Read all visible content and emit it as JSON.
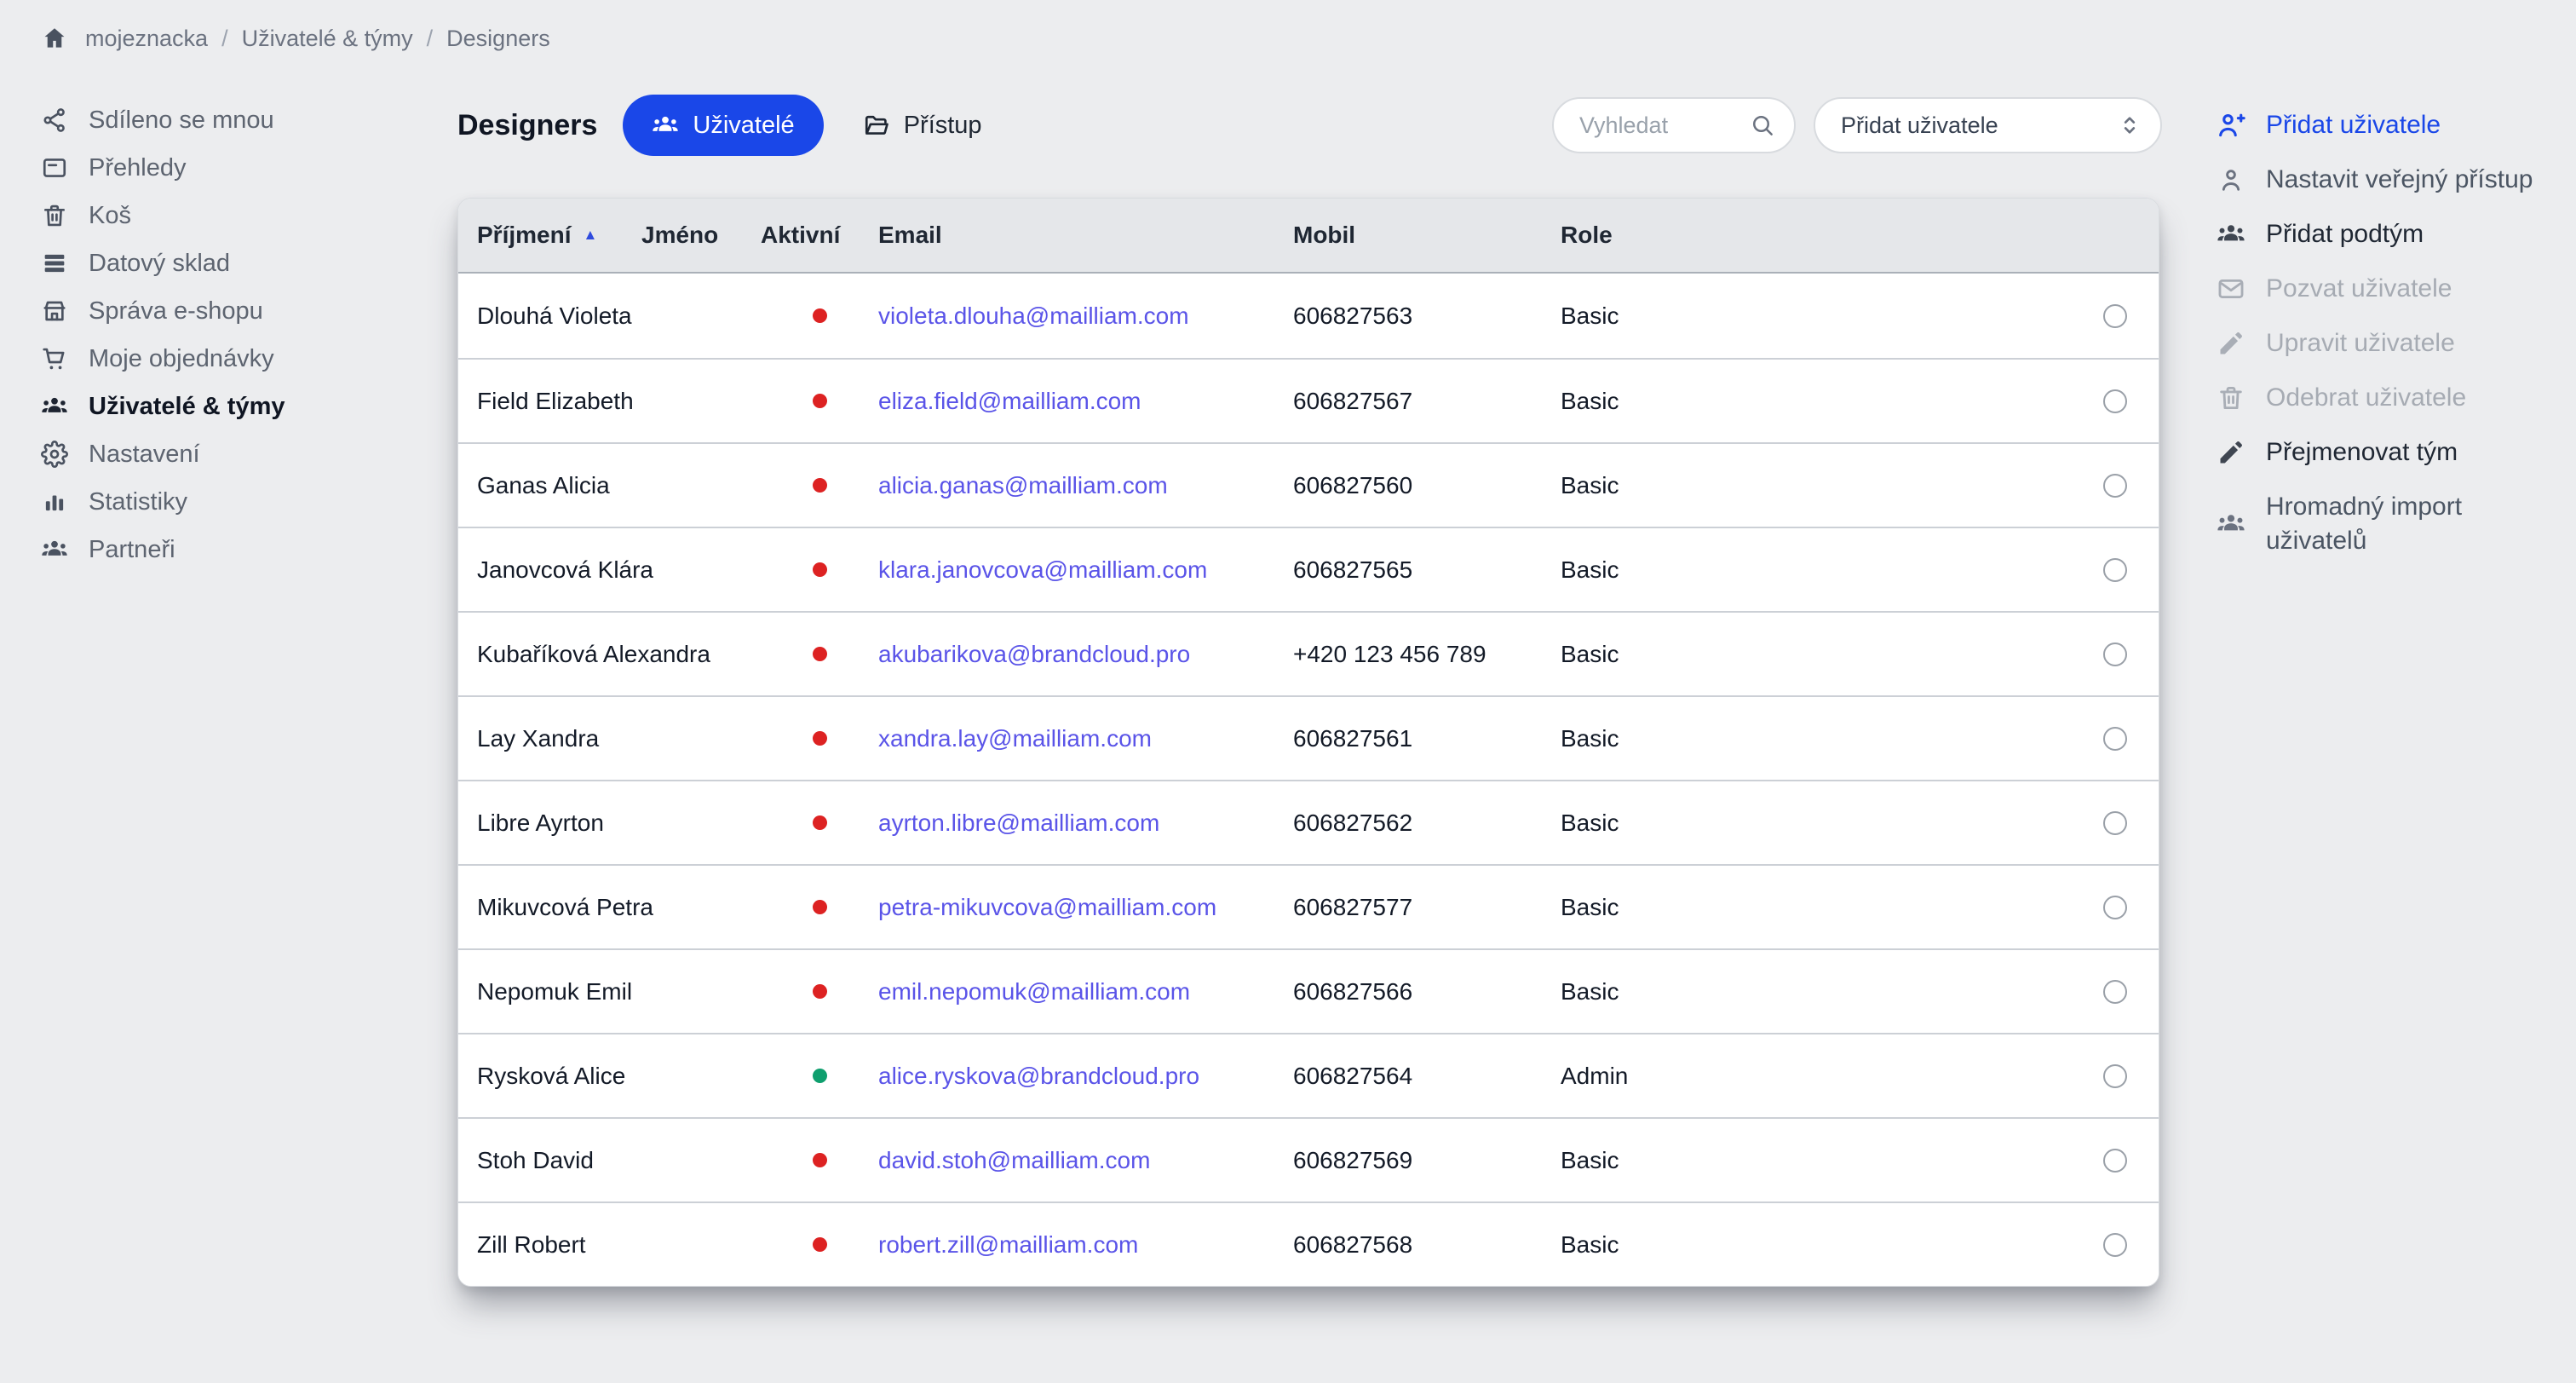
{
  "colors": {
    "accent": "#1a47e8",
    "link": "#5a54e8",
    "status_active": "#0f9f6e",
    "status_inactive": "#dd2222"
  },
  "breadcrumb": {
    "separator": "/",
    "items": [
      "mojeznacka",
      "Uživatelé & týmy",
      "Designers"
    ]
  },
  "sidebar": {
    "items": [
      {
        "icon": "share-icon",
        "label": "Sdíleno se mnou",
        "active": false
      },
      {
        "icon": "overview-icon",
        "label": "Přehledy",
        "active": false
      },
      {
        "icon": "trash-icon",
        "label": "Koš",
        "active": false
      },
      {
        "icon": "data-warehouse-icon",
        "label": "Datový sklad",
        "active": false
      },
      {
        "icon": "store-icon",
        "label": "Správa e-shopu",
        "active": false
      },
      {
        "icon": "cart-icon",
        "label": "Moje objednávky",
        "active": false
      },
      {
        "icon": "users-icon",
        "label": "Uživatelé & týmy",
        "active": true
      },
      {
        "icon": "gear-icon",
        "label": "Nastavení",
        "active": false
      },
      {
        "icon": "stats-icon",
        "label": "Statistiky",
        "active": false
      },
      {
        "icon": "partners-icon",
        "label": "Partneři",
        "active": false
      }
    ]
  },
  "header": {
    "title": "Designers",
    "tabs": [
      {
        "icon": "users-icon",
        "label": "Uživatelé",
        "active": true
      },
      {
        "icon": "folder-icon",
        "label": "Přístup",
        "active": false
      }
    ],
    "search_placeholder": "Vyhledat",
    "add_user_label": "Přidat uživatele"
  },
  "table": {
    "columns": [
      "Příjmení",
      "Jméno",
      "Aktivní",
      "Email",
      "Mobil",
      "Role",
      ""
    ],
    "sort": {
      "column": "Příjmení",
      "direction": "asc"
    },
    "rows": [
      {
        "name": "Dlouhá Violeta",
        "active": false,
        "email": "violeta.dlouha@mailliam.com",
        "mobile": "606827563",
        "role": "Basic"
      },
      {
        "name": "Field Elizabeth",
        "active": false,
        "email": "eliza.field@mailliam.com",
        "mobile": "606827567",
        "role": "Basic"
      },
      {
        "name": "Ganas Alicia",
        "active": false,
        "email": "alicia.ganas@mailliam.com",
        "mobile": "606827560",
        "role": "Basic"
      },
      {
        "name": "Janovcová Klára",
        "active": false,
        "email": "klara.janovcova@mailliam.com",
        "mobile": "606827565",
        "role": "Basic"
      },
      {
        "name": "Kubaříková Alexandra",
        "active": false,
        "email": "akubarikova@brandcloud.pro",
        "mobile": "+420 123 456 789",
        "role": "Basic"
      },
      {
        "name": "Lay Xandra",
        "active": false,
        "email": "xandra.lay@mailliam.com",
        "mobile": "606827561",
        "role": "Basic"
      },
      {
        "name": "Libre Ayrton",
        "active": false,
        "email": "ayrton.libre@mailliam.com",
        "mobile": "606827562",
        "role": "Basic"
      },
      {
        "name": "Mikuvcová Petra",
        "active": false,
        "email": "petra-mikuvcova@mailliam.com",
        "mobile": "606827577",
        "role": "Basic"
      },
      {
        "name": "Nepomuk Emil",
        "active": false,
        "email": "emil.nepomuk@mailliam.com",
        "mobile": "606827566",
        "role": "Basic"
      },
      {
        "name": "Rysková Alice",
        "active": true,
        "email": "alice.ryskova@brandcloud.pro",
        "mobile": "606827564",
        "role": "Admin"
      },
      {
        "name": "Stoh David",
        "active": false,
        "email": "david.stoh@mailliam.com",
        "mobile": "606827569",
        "role": "Basic"
      },
      {
        "name": "Zill Robert",
        "active": false,
        "email": "robert.zill@mailliam.com",
        "mobile": "606827568",
        "role": "Basic"
      }
    ]
  },
  "actions": {
    "items": [
      {
        "icon": "person-add-icon",
        "label": "Přidat uživatele",
        "state": "primary"
      },
      {
        "icon": "person-icon",
        "label": "Nastavit veřejný přístup",
        "state": "default"
      },
      {
        "icon": "users-icon",
        "label": "Přidat podtým",
        "state": "strong"
      },
      {
        "icon": "mail-icon",
        "label": "Pozvat uživatele",
        "state": "disabled"
      },
      {
        "icon": "pencil-icon",
        "label": "Upravit uživatele",
        "state": "disabled"
      },
      {
        "icon": "trash-icon",
        "label": "Odebrat uživatele",
        "state": "disabled"
      },
      {
        "icon": "pencil-icon",
        "label": "Přejmenovat tým",
        "state": "strong"
      },
      {
        "icon": "import-users-icon",
        "label": "Hromadný import uživatelů",
        "state": "default"
      }
    ]
  }
}
